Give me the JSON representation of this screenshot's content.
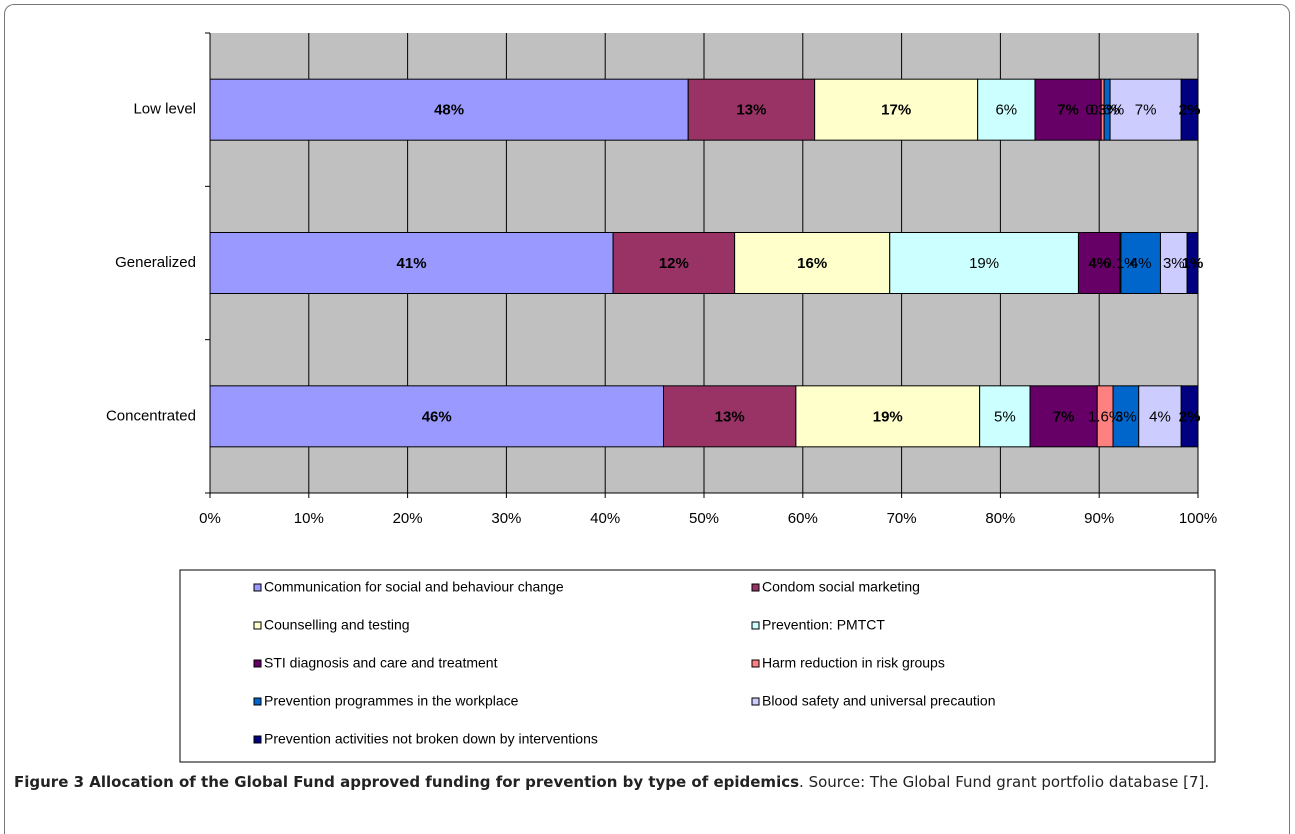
{
  "chart_data": {
    "type": "stacked_barh",
    "categories": [
      "Low level",
      "Generalized",
      "Concentrated"
    ],
    "series": [
      {
        "name": "Communication for social and behaviour change",
        "color": "#9999ff",
        "values": [
          48.4,
          40.8,
          45.9
        ],
        "value_labels": [
          "48%",
          "41%",
          "46%"
        ]
      },
      {
        "name": "Condom social marketing",
        "color": "#993366",
        "values": [
          12.8,
          12.3,
          13.4
        ],
        "value_labels": [
          "13%",
          "12%",
          "13%"
        ]
      },
      {
        "name": "Counselling and testing",
        "color": "#ffffcc",
        "values": [
          16.5,
          15.7,
          18.6
        ],
        "value_labels": [
          "17%",
          "16%",
          "19%"
        ]
      },
      {
        "name": "Prevention: PMTCT",
        "color": "#ccffff",
        "values": [
          5.8,
          19.1,
          5.1
        ],
        "value_labels": [
          "6%",
          "19%",
          "5%"
        ]
      },
      {
        "name": "STI diagnosis and care and treatment",
        "color": "#660066",
        "values": [
          6.7,
          4.2,
          6.8
        ],
        "value_labels": [
          "7%",
          "4%",
          "7%"
        ]
      },
      {
        "name": "Harm reduction in risk groups",
        "color": "#ff8080",
        "values": [
          0.3,
          0.1,
          1.6
        ],
        "value_labels": [
          "0.3%",
          "0.1%",
          "1.6%"
        ]
      },
      {
        "name": "Prevention programmes in the workplace",
        "color": "#0066cc",
        "values": [
          0.6,
          4.0,
          2.6
        ],
        "value_labels": [
          "0.6%",
          "4%",
          "3%"
        ]
      },
      {
        "name": "Blood safety and universal precaution",
        "color": "#ccccff",
        "values": [
          7.2,
          2.7,
          4.3
        ],
        "value_labels": [
          "7%",
          "3%",
          "4%"
        ]
      },
      {
        "name": "Prevention activities not broken down by interventions",
        "color": "#000080",
        "values": [
          1.7,
          1.1,
          1.7
        ],
        "value_labels": [
          "2%",
          "1%",
          "2%"
        ]
      }
    ],
    "xlim": [
      0,
      100
    ],
    "xticks": [
      {
        "value": 0,
        "label": "0%"
      },
      {
        "value": 10,
        "label": "10%"
      },
      {
        "value": 20,
        "label": "20%"
      },
      {
        "value": 30,
        "label": "30%"
      },
      {
        "value": 40,
        "label": "40%"
      },
      {
        "value": 50,
        "label": "50%"
      },
      {
        "value": 60,
        "label": "60%"
      },
      {
        "value": 70,
        "label": "70%"
      },
      {
        "value": 80,
        "label": "80%"
      },
      {
        "value": 90,
        "label": "90%"
      },
      {
        "value": 100,
        "label": "100%"
      }
    ],
    "grid": true,
    "legend": "bottom",
    "caption_title": "Figure 3 Allocation of the Global Fund approved funding for prevention by type of epidemics",
    "caption_text": ". Source: The Global Fund grant portfolio database [7]."
  }
}
